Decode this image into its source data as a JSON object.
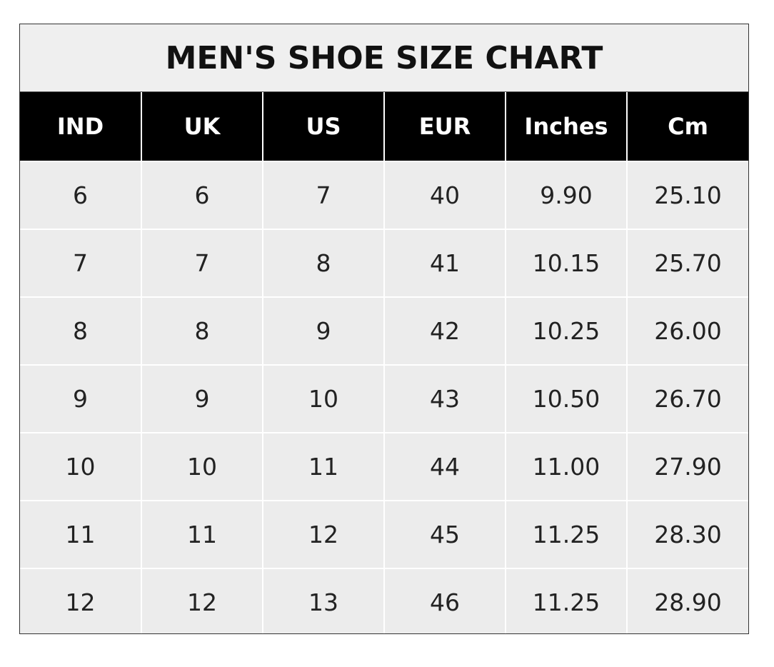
{
  "title": "MEN'S SHOE SIZE CHART",
  "columns": [
    "IND",
    "UK",
    "US",
    "EUR",
    "Inches",
    "Cm"
  ],
  "rows": [
    [
      "6",
      "6",
      "7",
      "40",
      "9.90",
      "25.10"
    ],
    [
      "7",
      "7",
      "8",
      "41",
      "10.15",
      "25.70"
    ],
    [
      "8",
      "8",
      "9",
      "42",
      "10.25",
      "26.00"
    ],
    [
      "9",
      "9",
      "10",
      "43",
      "10.50",
      "26.70"
    ],
    [
      "10",
      "10",
      "11",
      "44",
      "11.00",
      "27.90"
    ],
    [
      "11",
      "11",
      "12",
      "45",
      "11.25",
      "28.30"
    ],
    [
      "12",
      "12",
      "13",
      "46",
      "11.25",
      "28.90"
    ]
  ],
  "colors": {
    "header_bg": "#000000",
    "header_text": "#ffffff",
    "cell_bg": "#ececec",
    "title_bg": "#efefef"
  }
}
